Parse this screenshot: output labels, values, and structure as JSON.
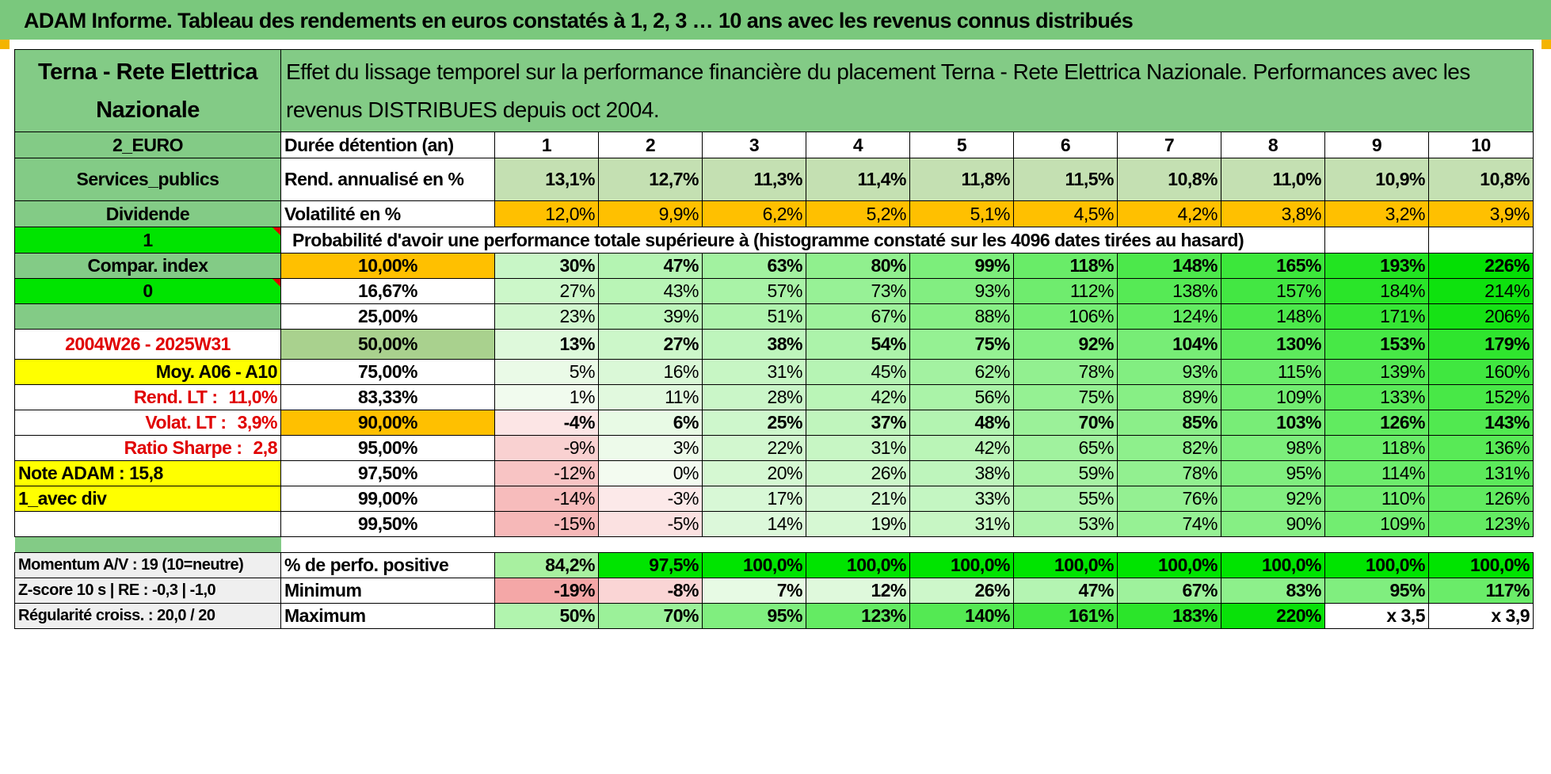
{
  "banner": "ADAM Informe. Tableau des rendements en euros constatés à 1, 2, 3 … 10 ans avec les revenus connus distribués",
  "colors": {
    "banner": "#7ac87d",
    "header_green": "#83cb86",
    "bright_green": "#00e400",
    "yellow": "#ffff00",
    "orange": "#ffc000",
    "light_green_rend": "#c4e0b2",
    "median_row": "#a9d18e",
    "red_text": "#e00000"
  },
  "left_panel": {
    "company": "Terna - Rete Elettrica Nazionale",
    "currency": "2_EURO",
    "sector": "Services_publics",
    "income_type": "Dividende",
    "param1": "1",
    "compar_index": "Compar. index",
    "param2": "0",
    "period": "2004W26 - 2025W31",
    "moy": "Moy. A06 - A10",
    "rend_lt_label": "Rend. LT :",
    "rend_lt_value": "11,0%",
    "volat_lt_label": "Volat. LT :",
    "volat_lt_value": "3,9%",
    "sharpe_label": "Ratio Sharpe :",
    "sharpe_value": "2,8",
    "note": "Note ADAM : 15,8",
    "mode": "1_avec div",
    "momentum": "Momentum A/V : 19 (10=neutre)",
    "zscore": "Z-score 10 s | RE : -0,3 | -1,0",
    "regularite": "Régularité croiss. : 20,0 / 20"
  },
  "title": "Effet du lissage temporel sur la performance financière du placement Terna - Rete Elettrica Nazionale. Performances avec les revenus DISTRIBUES depuis oct 2004.",
  "duration_label": "Durée détention (an)",
  "years": [
    "1",
    "2",
    "3",
    "4",
    "5",
    "6",
    "7",
    "8",
    "9",
    "10"
  ],
  "rend_label": "Rend. annualisé en %",
  "rend": [
    "13,1%",
    "12,7%",
    "11,3%",
    "11,4%",
    "11,8%",
    "11,5%",
    "10,8%",
    "11,0%",
    "10,9%",
    "10,8%"
  ],
  "vol_label": "Volatilité en %",
  "vol": [
    "12,0%",
    "9,9%",
    "6,2%",
    "5,2%",
    "5,1%",
    "4,5%",
    "4,2%",
    "3,8%",
    "3,2%",
    "3,9%"
  ],
  "prob_header": "Probabilité d'avoir une performance totale supérieure à (histogramme constaté sur les 4096 dates tirées au hasard)",
  "quantiles": [
    {
      "p": "10,00%",
      "v": [
        "30%",
        "47%",
        "63%",
        "80%",
        "99%",
        "118%",
        "148%",
        "165%",
        "193%",
        "226%"
      ],
      "style": "b",
      "pfill": "#ffc000"
    },
    {
      "p": "16,67%",
      "v": [
        "27%",
        "43%",
        "57%",
        "73%",
        "93%",
        "112%",
        "138%",
        "157%",
        "184%",
        "214%"
      ],
      "style": "",
      "pfill": "#ffffff"
    },
    {
      "p": "25,00%",
      "v": [
        "23%",
        "39%",
        "51%",
        "67%",
        "88%",
        "106%",
        "124%",
        "148%",
        "171%",
        "206%"
      ],
      "style": "",
      "pfill": "#ffffff"
    },
    {
      "p": "50,00%",
      "v": [
        "13%",
        "27%",
        "38%",
        "54%",
        "75%",
        "92%",
        "104%",
        "130%",
        "153%",
        "179%"
      ],
      "style": "big",
      "pfill": "#a9d18e"
    },
    {
      "p": "75,00%",
      "v": [
        "5%",
        "16%",
        "31%",
        "45%",
        "62%",
        "78%",
        "93%",
        "115%",
        "139%",
        "160%"
      ],
      "style": "",
      "pfill": "#ffffff"
    },
    {
      "p": "83,33%",
      "v": [
        "1%",
        "11%",
        "28%",
        "42%",
        "56%",
        "75%",
        "89%",
        "109%",
        "133%",
        "152%"
      ],
      "style": "",
      "pfill": "#ffffff"
    },
    {
      "p": "90,00%",
      "v": [
        "-4%",
        "6%",
        "25%",
        "37%",
        "48%",
        "70%",
        "85%",
        "103%",
        "126%",
        "143%"
      ],
      "style": "b",
      "pfill": "#ffc000"
    },
    {
      "p": "95,00%",
      "v": [
        "-9%",
        "3%",
        "22%",
        "31%",
        "42%",
        "65%",
        "82%",
        "98%",
        "118%",
        "136%"
      ],
      "style": "",
      "pfill": "#ffffff"
    },
    {
      "p": "97,50%",
      "v": [
        "-12%",
        "0%",
        "20%",
        "26%",
        "38%",
        "59%",
        "78%",
        "95%",
        "114%",
        "131%"
      ],
      "style": "",
      "pfill": "#ffffff"
    },
    {
      "p": "99,00%",
      "v": [
        "-14%",
        "-3%",
        "17%",
        "21%",
        "33%",
        "55%",
        "76%",
        "92%",
        "110%",
        "126%"
      ],
      "style": "",
      "pfill": "#ffffff"
    },
    {
      "p": "99,50%",
      "v": [
        "-15%",
        "-5%",
        "14%",
        "19%",
        "31%",
        "53%",
        "74%",
        "90%",
        "109%",
        "123%"
      ],
      "style": "",
      "pfill": "#ffffff"
    }
  ],
  "pos_label": "% de perfo. positive",
  "pos": [
    "84,2%",
    "97,5%",
    "100,0%",
    "100,0%",
    "100,0%",
    "100,0%",
    "100,0%",
    "100,0%",
    "100,0%",
    "100,0%"
  ],
  "min_label": "Minimum",
  "min": [
    "-19%",
    "-8%",
    "7%",
    "12%",
    "26%",
    "47%",
    "67%",
    "83%",
    "95%",
    "117%"
  ],
  "max_label": "Maximum",
  "max": [
    "50%",
    "70%",
    "95%",
    "123%",
    "140%",
    "161%",
    "183%",
    "220%",
    "x 3,5",
    "x 3,9"
  ]
}
